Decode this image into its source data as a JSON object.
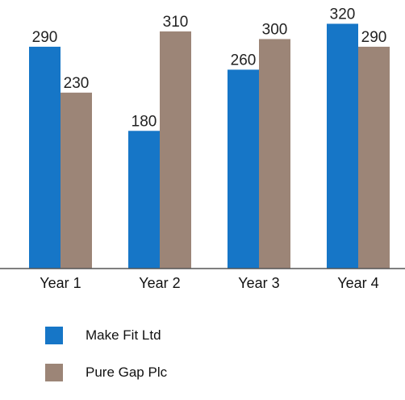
{
  "chart_data": {
    "type": "bar",
    "categories": [
      "Year 1",
      "Year 2",
      "Year 3",
      "Year 4"
    ],
    "series": [
      {
        "name": "Make Fit Ltd",
        "values": [
          290,
          180,
          260,
          320
        ],
        "color": "#1676c7"
      },
      {
        "name": "Pure Gap Plc",
        "values": [
          230,
          310,
          300,
          290
        ],
        "color": "#9c8577"
      }
    ],
    "ylim": [
      0,
      330
    ],
    "grid": false,
    "legend": "bottom-left"
  }
}
